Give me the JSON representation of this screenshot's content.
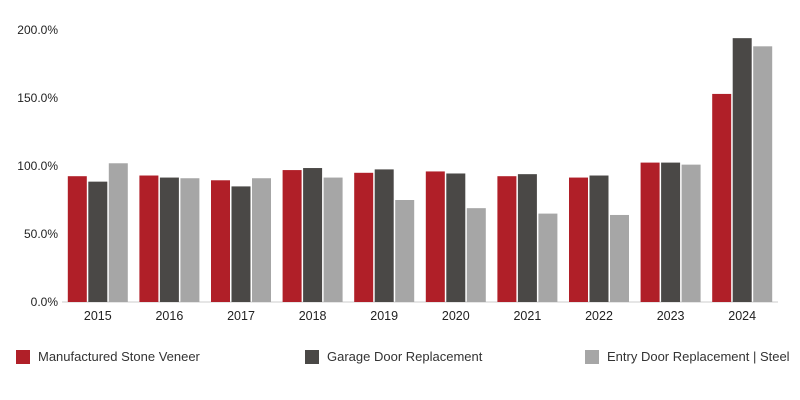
{
  "chart_data": {
    "type": "bar",
    "categories": [
      "2015",
      "2016",
      "2017",
      "2018",
      "2019",
      "2020",
      "2021",
      "2022",
      "2023",
      "2024"
    ],
    "series": [
      {
        "name": "Manufactured Stone Veneer",
        "color": "#b01f28",
        "values": [
          92.5,
          93.0,
          89.5,
          97.0,
          95.0,
          96.0,
          92.5,
          91.5,
          102.5,
          153.0
        ]
      },
      {
        "name": "Garage Door Replacement",
        "color": "#4a4846",
        "values": [
          88.5,
          91.5,
          85.0,
          98.5,
          97.5,
          94.5,
          94.0,
          93.0,
          102.5,
          194.0
        ]
      },
      {
        "name": "Entry Door Replacement | Steel",
        "color": "#a6a6a6",
        "values": [
          102.0,
          91.0,
          91.0,
          91.5,
          75.0,
          69.0,
          65.0,
          64.0,
          101.0,
          188.0
        ]
      }
    ],
    "yticks": [
      "0.0%",
      "50.0%",
      "100.0%",
      "150.0%",
      "200.0%"
    ],
    "ylim": [
      0,
      200
    ],
    "grid": false,
    "legend_position": "bottom"
  }
}
